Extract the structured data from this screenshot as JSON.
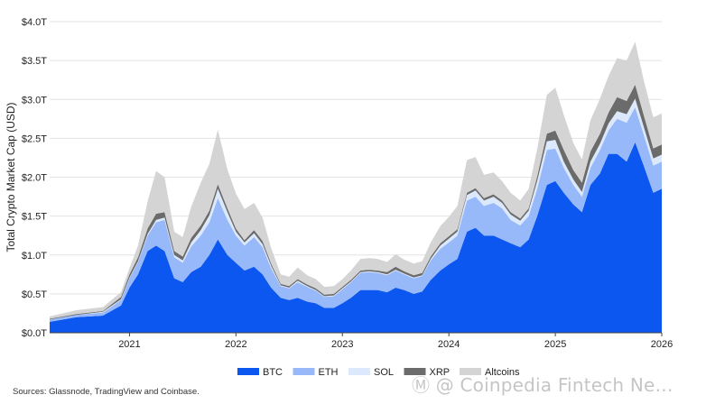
{
  "chart_data": {
    "type": "area",
    "stacked": true,
    "title": "",
    "xlabel": "",
    "ylabel": "Total Crypto Market Cap (USD)",
    "ylim": [
      0,
      4.0
    ],
    "y_ticks": [
      0,
      0.5,
      1.0,
      1.5,
      2.0,
      2.5,
      3.0,
      3.5,
      4.0
    ],
    "y_tick_labels": [
      "$0.0T",
      "$0.5T",
      "$1.0T",
      "$1.5T",
      "$2.0T",
      "$2.5T",
      "$3.0T",
      "$3.5T",
      "$4.0T"
    ],
    "x_tick_labels": [
      "2021",
      "2022",
      "2023",
      "2024",
      "2025",
      "2026"
    ],
    "x_ticks": [
      2021,
      2022,
      2023,
      2024,
      2025,
      2026
    ],
    "xlim": [
      2020.25,
      2026.0
    ],
    "grid": "horizontal",
    "legend_position": "bottom",
    "x": [
      2020.25,
      2020.5,
      2020.75,
      2020.92,
      2021.0,
      2021.08,
      2021.17,
      2021.25,
      2021.33,
      2021.42,
      2021.5,
      2021.58,
      2021.67,
      2021.75,
      2021.83,
      2021.92,
      2022.0,
      2022.08,
      2022.17,
      2022.25,
      2022.33,
      2022.42,
      2022.5,
      2022.58,
      2022.67,
      2022.75,
      2022.83,
      2022.92,
      2023.0,
      2023.08,
      2023.17,
      2023.25,
      2023.33,
      2023.42,
      2023.5,
      2023.58,
      2023.67,
      2023.75,
      2023.83,
      2023.92,
      2024.0,
      2024.08,
      2024.17,
      2024.25,
      2024.33,
      2024.42,
      2024.5,
      2024.58,
      2024.67,
      2024.75,
      2024.83,
      2024.92,
      2025.0,
      2025.08,
      2025.17,
      2025.25,
      2025.33,
      2025.42,
      2025.5,
      2025.58,
      2025.67,
      2025.75,
      2025.83,
      2025.92,
      2026.0
    ],
    "series": [
      {
        "name": "BTC",
        "color": "#0b57f0",
        "values": [
          0.14,
          0.2,
          0.22,
          0.35,
          0.58,
          0.75,
          1.05,
          1.12,
          1.05,
          0.7,
          0.65,
          0.78,
          0.85,
          1.0,
          1.2,
          1.0,
          0.9,
          0.8,
          0.85,
          0.75,
          0.58,
          0.45,
          0.42,
          0.45,
          0.4,
          0.38,
          0.32,
          0.32,
          0.38,
          0.45,
          0.55,
          0.55,
          0.55,
          0.52,
          0.58,
          0.55,
          0.5,
          0.53,
          0.68,
          0.8,
          0.88,
          0.95,
          1.3,
          1.35,
          1.25,
          1.25,
          1.2,
          1.15,
          1.1,
          1.2,
          1.5,
          1.9,
          1.95,
          1.8,
          1.65,
          1.55,
          1.9,
          2.05,
          2.3,
          2.3,
          2.2,
          2.45,
          2.15,
          1.8,
          1.85
        ]
      },
      {
        "name": "ETH",
        "color": "#97b9fa",
        "values": [
          0.03,
          0.03,
          0.04,
          0.07,
          0.12,
          0.16,
          0.2,
          0.3,
          0.4,
          0.27,
          0.25,
          0.33,
          0.4,
          0.42,
          0.53,
          0.45,
          0.35,
          0.32,
          0.38,
          0.35,
          0.25,
          0.15,
          0.15,
          0.2,
          0.19,
          0.16,
          0.14,
          0.15,
          0.18,
          0.2,
          0.22,
          0.23,
          0.22,
          0.22,
          0.22,
          0.2,
          0.2,
          0.2,
          0.25,
          0.28,
          0.28,
          0.3,
          0.4,
          0.4,
          0.38,
          0.42,
          0.4,
          0.3,
          0.28,
          0.3,
          0.35,
          0.45,
          0.42,
          0.32,
          0.25,
          0.2,
          0.22,
          0.3,
          0.3,
          0.45,
          0.5,
          0.45,
          0.4,
          0.35,
          0.35
        ]
      },
      {
        "name": "SOL",
        "color": "#dce8fb",
        "values": [
          0.0,
          0.0,
          0.01,
          0.01,
          0.01,
          0.01,
          0.02,
          0.03,
          0.03,
          0.03,
          0.03,
          0.05,
          0.07,
          0.09,
          0.12,
          0.1,
          0.05,
          0.04,
          0.05,
          0.04,
          0.03,
          0.01,
          0.01,
          0.02,
          0.01,
          0.01,
          0.01,
          0.01,
          0.01,
          0.01,
          0.01,
          0.01,
          0.01,
          0.01,
          0.01,
          0.01,
          0.01,
          0.01,
          0.02,
          0.04,
          0.05,
          0.05,
          0.07,
          0.08,
          0.07,
          0.08,
          0.07,
          0.07,
          0.06,
          0.07,
          0.1,
          0.11,
          0.11,
          0.08,
          0.07,
          0.06,
          0.08,
          0.08,
          0.09,
          0.1,
          0.11,
          0.11,
          0.1,
          0.09,
          0.09
        ]
      },
      {
        "name": "XRP",
        "color": "#6b6b6b",
        "values": [
          0.01,
          0.01,
          0.01,
          0.03,
          0.04,
          0.05,
          0.07,
          0.08,
          0.07,
          0.05,
          0.05,
          0.06,
          0.06,
          0.06,
          0.06,
          0.05,
          0.04,
          0.03,
          0.04,
          0.04,
          0.03,
          0.02,
          0.02,
          0.02,
          0.02,
          0.02,
          0.02,
          0.02,
          0.02,
          0.02,
          0.02,
          0.02,
          0.02,
          0.03,
          0.04,
          0.03,
          0.03,
          0.03,
          0.03,
          0.03,
          0.03,
          0.03,
          0.03,
          0.03,
          0.03,
          0.03,
          0.03,
          0.03,
          0.03,
          0.03,
          0.06,
          0.1,
          0.12,
          0.15,
          0.12,
          0.12,
          0.13,
          0.13,
          0.14,
          0.18,
          0.17,
          0.18,
          0.15,
          0.13,
          0.13
        ]
      },
      {
        "name": "Altcoins",
        "color": "#d4d4d4",
        "values": [
          0.03,
          0.05,
          0.05,
          0.06,
          0.08,
          0.15,
          0.35,
          0.55,
          0.45,
          0.25,
          0.25,
          0.4,
          0.55,
          0.6,
          0.7,
          0.5,
          0.45,
          0.4,
          0.35,
          0.3,
          0.2,
          0.12,
          0.12,
          0.15,
          0.12,
          0.12,
          0.1,
          0.1,
          0.1,
          0.12,
          0.15,
          0.15,
          0.15,
          0.13,
          0.16,
          0.15,
          0.15,
          0.15,
          0.18,
          0.22,
          0.25,
          0.3,
          0.42,
          0.4,
          0.3,
          0.28,
          0.25,
          0.25,
          0.23,
          0.25,
          0.35,
          0.5,
          0.55,
          0.45,
          0.35,
          0.3,
          0.4,
          0.45,
          0.47,
          0.5,
          0.52,
          0.55,
          0.45,
          0.4,
          0.4
        ]
      }
    ]
  },
  "source_text": "Sources: Glassnode, TradingView and Coinbase.",
  "watermark_text": "Ⓜ @ Coinpedia Fintech Ne…"
}
